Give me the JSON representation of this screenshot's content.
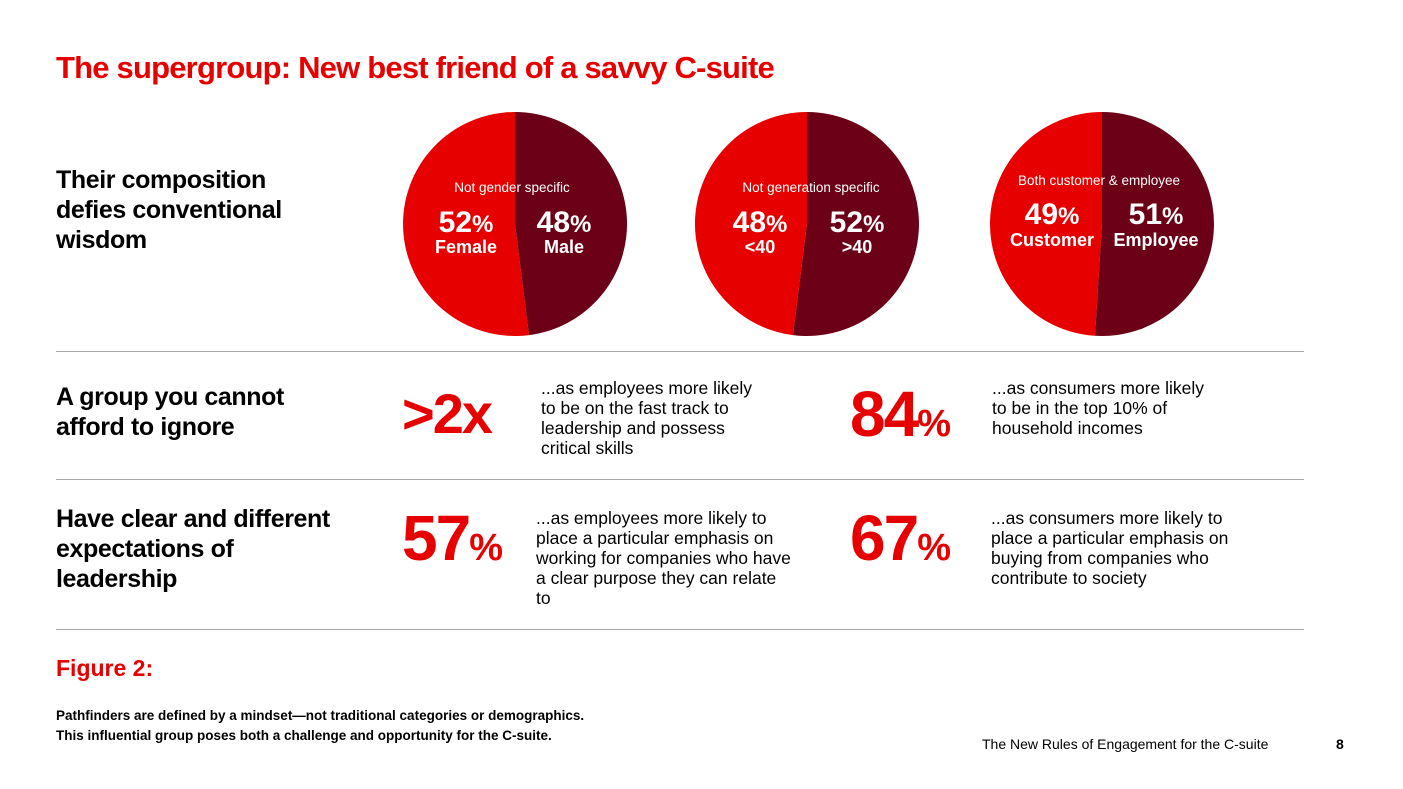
{
  "title": "The supergroup: New best friend of a savvy C-suite",
  "colors": {
    "accent": "#e60000",
    "dark": "#6b0016"
  },
  "rows": {
    "composition": "Their composition defies conventional wisdom",
    "ignore": "A group you cannot afford to ignore",
    "expectations": "Have clear and different expectations of leadership"
  },
  "chart_data": [
    {
      "type": "pie",
      "title": "Not gender specific",
      "slices": [
        {
          "value": 52,
          "display": "52",
          "label": "Female",
          "color": "#e60000"
        },
        {
          "value": 48,
          "display": "48",
          "label": "Male",
          "color": "#6b0016"
        }
      ]
    },
    {
      "type": "pie",
      "title": "Not generation specific",
      "slices": [
        {
          "value": 48,
          "display": "48",
          "label": "<40",
          "color": "#e60000"
        },
        {
          "value": 52,
          "display": "52",
          "label": ">40",
          "color": "#6b0016"
        }
      ]
    },
    {
      "type": "pie",
      "title": "Both customer & employee",
      "slices": [
        {
          "value": 49,
          "display": "49",
          "label": "Customer",
          "color": "#e60000"
        },
        {
          "value": 51,
          "display": "51",
          "label": "Employee",
          "color": "#6b0016"
        }
      ]
    }
  ],
  "percent_sign": "%",
  "stats": {
    "fast_track": {
      "value": ">2x",
      "text": "...as employees more likely to be on the fast track to leadership and possess critical skills"
    },
    "top_income": {
      "value": "84",
      "text": "...as consumers more likely to be in the top 10% of household incomes"
    },
    "purpose": {
      "value": "57",
      "text": "...as employees more likely to place a particular emphasis on working for companies who have a clear purpose they can relate to"
    },
    "society": {
      "value": "67",
      "text": "...as consumers more likely to place a particular emphasis on buying from companies who contribute to society"
    }
  },
  "figure": {
    "label": "Figure 2:",
    "caption_line1": "Pathfinders are defined by a mindset—not traditional categories or demographics.",
    "caption_line2": "This influential group poses both a challenge and opportunity for the C-suite."
  },
  "footer": {
    "text": "The New Rules of Engagement for the C-suite",
    "page": "8"
  }
}
